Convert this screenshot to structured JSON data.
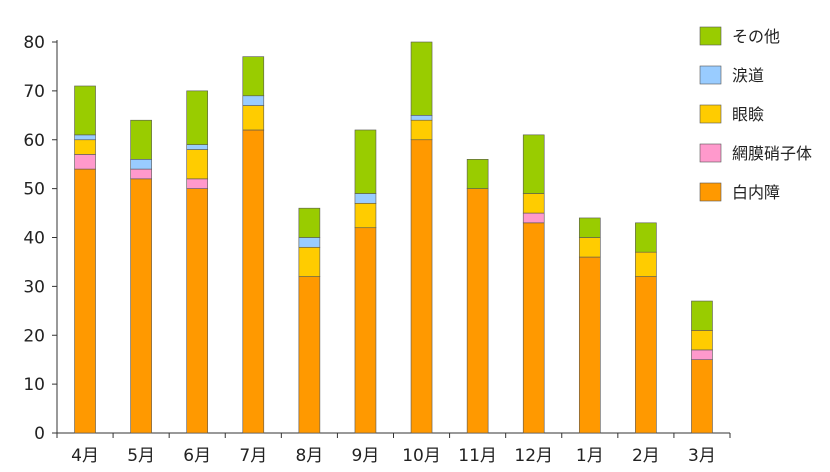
{
  "chart_data": {
    "type": "bar",
    "stacked": true,
    "categories": [
      "4月",
      "5月",
      "6月",
      "7月",
      "8月",
      "9月",
      "10月",
      "11月",
      "12月",
      "1月",
      "2月",
      "3月"
    ],
    "ylim": [
      0,
      80
    ],
    "yticks": [
      0,
      10,
      20,
      30,
      40,
      50,
      60,
      70,
      80
    ],
    "ytick_labels": [
      "0",
      "10",
      "20",
      "30",
      "40",
      "50",
      "60",
      "70",
      "80"
    ],
    "grid": false,
    "legend_position": "top-right",
    "series": [
      {
        "name": "白内障",
        "color": "#FF9900",
        "values": [
          54,
          52,
          50,
          62,
          32,
          42,
          60,
          50,
          43,
          36,
          32,
          15
        ]
      },
      {
        "name": "網膜硝子体",
        "color": "#FF99CC",
        "values": [
          3,
          2,
          2,
          0,
          0,
          0,
          0,
          0,
          2,
          0,
          0,
          2
        ]
      },
      {
        "name": "眼瞼",
        "color": "#FFCC00",
        "values": [
          3,
          0,
          6,
          5,
          6,
          5,
          4,
          0,
          4,
          4,
          5,
          4
        ]
      },
      {
        "name": "涙道",
        "color": "#99CCFF",
        "values": [
          1,
          2,
          1,
          2,
          2,
          2,
          1,
          0,
          0,
          0,
          0,
          0
        ]
      },
      {
        "name": "その他",
        "color": "#99CC00",
        "values": [
          10,
          8,
          11,
          8,
          6,
          13,
          15,
          6,
          12,
          4,
          6,
          6
        ]
      }
    ]
  }
}
